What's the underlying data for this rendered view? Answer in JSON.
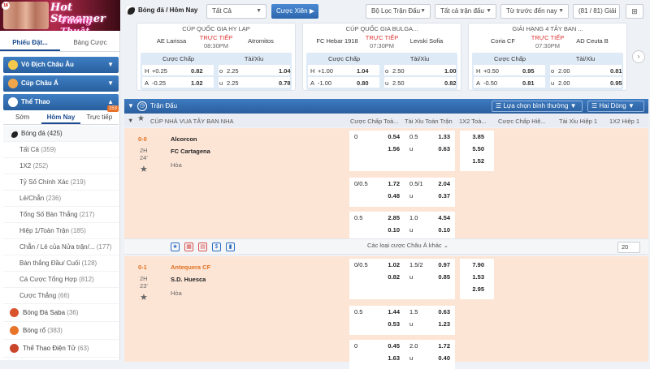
{
  "banner": {
    "brand_line1": "Hot Streamer",
    "brand_line2": "Tướng Thuật",
    "age": "18"
  },
  "sidebar": {
    "tabs": [
      "Phiếu Đặt...",
      "Bảng Cược"
    ],
    "sections": [
      "Vô Địch Châu Âu",
      "Cúp Châu Á",
      "Thể Thao"
    ],
    "subtabs": [
      "Sớm",
      "Hôm Nay",
      "Trực tiếp"
    ],
    "live_badge": "153",
    "soccer": {
      "label": "Bóng đá",
      "count": "(425)"
    },
    "items": [
      {
        "label": "Tất Cả",
        "count": "(359)"
      },
      {
        "label": "1X2",
        "count": "(252)"
      },
      {
        "label": "Tỷ Số Chính Xác",
        "count": "(219)"
      },
      {
        "label": "Lẻ/Chẵn",
        "count": "(236)"
      },
      {
        "label": "Tổng Số Bàn Thắng",
        "count": "(217)"
      },
      {
        "label": "Hiệp 1/Toàn Trận",
        "count": "(185)"
      },
      {
        "label": "Chẵn / Lẻ của Nửa trận/...",
        "count": "(177)"
      },
      {
        "label": "Bàn thắng Đầu/ Cuối",
        "count": "(128)"
      },
      {
        "label": "Cá Cược Tổng Hợp",
        "count": "(812)"
      },
      {
        "label": "Cược Thắng",
        "count": "(66)"
      }
    ],
    "sports": [
      {
        "label": "Bóng Đá Saba",
        "count": "(36)",
        "color": "#d9532c"
      },
      {
        "label": "Bóng rổ",
        "count": "(383)",
        "color": "#e8742a"
      },
      {
        "label": "Thể Thao Điện Tử",
        "count": "(63)",
        "color": "#c9462b"
      }
    ]
  },
  "topbar": {
    "title": "Bóng đá / Hôm Nay",
    "filter_all": "Tất Cả",
    "parlay": "Cược Xiên",
    "league_filter": "Bộ Lọc Trận Đấu",
    "all_matches": "Tất cả trận đấu",
    "sort": "Từ trước đến nay",
    "count": "(81 / 81) Giải"
  },
  "cards": [
    {
      "league": "CÚP QUỐC GIA HY LẠP",
      "home": "AE Larissa",
      "away": "Atromitos",
      "live": "TRỰC TIẾP",
      "time": "08:30PM",
      "rows": [
        [
          "H",
          "+0.25",
          "0.82",
          "o",
          "2.25",
          "1.04"
        ],
        [
          "A",
          "-0.25",
          "1.02",
          "u",
          "2.25",
          "0.78"
        ]
      ]
    },
    {
      "league": "CÚP QUỐC GIA BULGA...",
      "home": "FC Hebar 1918",
      "away": "Levski Sofia",
      "live": "TRỰC TIẾP",
      "time": "07:30PM",
      "rows": [
        [
          "H",
          "+1.00",
          "1.04",
          "o",
          "2.50",
          "1.00"
        ],
        [
          "A",
          "-1.00",
          "0.80",
          "u",
          "2.50",
          "0.82"
        ]
      ]
    },
    {
      "league": "GIẢI HẠNG 4 TÂY BAN ...",
      "home": "Coria CF",
      "away": "AD Ceuta B",
      "live": "TRỰC TIẾP",
      "time": "07:30PM",
      "rows": [
        [
          "H",
          "+0.50",
          "0.95",
          "o",
          "2.00",
          "0.81"
        ],
        [
          "A",
          "-0.50",
          "0.81",
          "u",
          "2.00",
          "0.95"
        ]
      ]
    }
  ],
  "card_headers": [
    "Cược Chấp",
    "Tài/Xỉu"
  ],
  "main": {
    "section_title": "Trận Đấu",
    "odds_type": "Lựa chọn bình thường",
    "view": "Hai Dòng",
    "league": "CÚP NHÀ VUA TÂY BAN NHA",
    "columns": [
      "Cược Chấp Toà...",
      "Tài Xỉu Toàn Trận",
      "1X2 Toà...",
      "Cược Chấp Hiệ...",
      "Tài Xỉu Hiệp 1",
      "1X2 Hiệp 1"
    ],
    "asian_more": "Các loại cược Châu Á khác",
    "page_size": "20",
    "matches": [
      {
        "score": "0-0",
        "period": "2H",
        "minute": "24'",
        "home": "Alcorcon",
        "away": "FC Cartagena",
        "draw": "Hòa",
        "lines": [
          {
            "hdp_line": "0",
            "hdp_home": "0.54",
            "hdp_away": "1.56",
            "ou_line": "0.5",
            "ou_over": "1.33",
            "ou_u": "u",
            "ou_under": "0.63",
            "x1": "3.85",
            "x2": "5.50",
            "xd": "1.52"
          },
          {
            "hdp_line": "0/0.5",
            "hdp_home": "1.72",
            "hdp_away": "0.48",
            "ou_line": "0.5/1",
            "ou_over": "2.04",
            "ou_u": "u",
            "ou_under": "0.37"
          },
          {
            "hdp_line": "0.5",
            "hdp_home": "2.85",
            "hdp_away": "0.10",
            "ou_line": "1.0",
            "ou_over": "4.54",
            "ou_u": "u",
            "ou_under": "0.10"
          }
        ]
      },
      {
        "score": "0-1",
        "period": "2H",
        "minute": "23'",
        "home": "Antequera CF",
        "away": "S.D. Huesca",
        "draw": "Hòa",
        "lines": [
          {
            "hdp_line": "0/0.5",
            "hdp_home": "1.02",
            "hdp_away": "0.82",
            "ou_line": "1.5/2",
            "ou_over": "0.97",
            "ou_u": "u",
            "ou_under": "0.85",
            "x1": "7.90",
            "x2": "1.53",
            "xd": "2.95"
          },
          {
            "hdp_line": "0.5",
            "hdp_home": "1.44",
            "hdp_away": "0.53",
            "ou_line": "1.5",
            "ou_over": "0.63",
            "ou_u": "u",
            "ou_under": "1.23"
          },
          {
            "hdp_line": "0",
            "hdp_home": "0.45",
            "hdp_away": "1.63",
            "ou_line": "2.0",
            "ou_over": "1.72",
            "ou_u": "u",
            "ou_under": "0.40"
          }
        ]
      }
    ]
  }
}
